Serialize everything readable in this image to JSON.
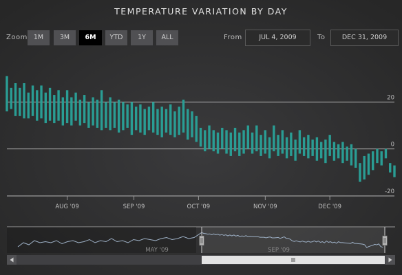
{
  "title": "TEMPERATURE VARIATION BY DAY",
  "zoom": {
    "label": "Zoom",
    "buttons": [
      "1m",
      "3m",
      "6m",
      "YTD",
      "1y",
      "All"
    ],
    "selected": "6m"
  },
  "range": {
    "from_label": "From",
    "from_value": "Jul 4, 2009",
    "to_label": "To",
    "to_value": "Dec 31, 2009"
  },
  "colors": {
    "bar": "#2a9d94",
    "navigator_line": "#9fb2c8",
    "grid": "#b5b5b5"
  },
  "chart_data": {
    "type": "bar",
    "subtype": "column-range",
    "title": "TEMPERATURE VARIATION BY DAY",
    "x_range": [
      "2009-07-04",
      "2009-12-31"
    ],
    "x_tick_labels": [
      "Aug '09",
      "Sep '09",
      "Oct '09",
      "Nov '09",
      "Dec '09"
    ],
    "y_ticks": [
      -20,
      0,
      20
    ],
    "ylim": [
      -20,
      40
    ],
    "grid": true,
    "y_axis_side": "right",
    "series": [
      {
        "data": [
          [
            "2009-07-04",
            16,
            31
          ],
          [
            "2009-07-06",
            17,
            26
          ],
          [
            "2009-07-08",
            14,
            28
          ],
          [
            "2009-07-10",
            14,
            26
          ],
          [
            "2009-07-12",
            13,
            28
          ],
          [
            "2009-07-14",
            13,
            24
          ],
          [
            "2009-07-16",
            14,
            27
          ],
          [
            "2009-07-18",
            12,
            25
          ],
          [
            "2009-07-20",
            13,
            27
          ],
          [
            "2009-07-22",
            11,
            24
          ],
          [
            "2009-07-24",
            12,
            26
          ],
          [
            "2009-07-26",
            11,
            23
          ],
          [
            "2009-07-28",
            12,
            25
          ],
          [
            "2009-07-30",
            10,
            22
          ],
          [
            "2009-08-01",
            11,
            25
          ],
          [
            "2009-08-03",
            10,
            22
          ],
          [
            "2009-08-05",
            12,
            24
          ],
          [
            "2009-08-07",
            10,
            21
          ],
          [
            "2009-08-09",
            11,
            23
          ],
          [
            "2009-08-11",
            9,
            20
          ],
          [
            "2009-08-13",
            10,
            22
          ],
          [
            "2009-08-15",
            9,
            21
          ],
          [
            "2009-08-17",
            8,
            25
          ],
          [
            "2009-08-19",
            9,
            20
          ],
          [
            "2009-08-21",
            8,
            22
          ],
          [
            "2009-08-23",
            9,
            20
          ],
          [
            "2009-08-25",
            7,
            21
          ],
          [
            "2009-08-27",
            8,
            20
          ],
          [
            "2009-08-29",
            9,
            19
          ],
          [
            "2009-08-31",
            6,
            20
          ],
          [
            "2009-09-02",
            8,
            18
          ],
          [
            "2009-09-04",
            7,
            19
          ],
          [
            "2009-09-06",
            6,
            17
          ],
          [
            "2009-09-08",
            8,
            18
          ],
          [
            "2009-09-10",
            7,
            20
          ],
          [
            "2009-09-12",
            6,
            17
          ],
          [
            "2009-09-14",
            5,
            18
          ],
          [
            "2009-09-16",
            7,
            17
          ],
          [
            "2009-09-18",
            6,
            19
          ],
          [
            "2009-09-20",
            5,
            16
          ],
          [
            "2009-09-22",
            6,
            18
          ],
          [
            "2009-09-24",
            7,
            21
          ],
          [
            "2009-09-26",
            4,
            17
          ],
          [
            "2009-09-28",
            5,
            16
          ],
          [
            "2009-09-30",
            3,
            14
          ],
          [
            "2009-10-02",
            1,
            9
          ],
          [
            "2009-10-04",
            -1,
            8
          ],
          [
            "2009-10-06",
            0,
            10
          ],
          [
            "2009-10-08",
            -1,
            8
          ],
          [
            "2009-10-10",
            -2,
            7
          ],
          [
            "2009-10-12",
            0,
            9
          ],
          [
            "2009-10-14",
            -2,
            8
          ],
          [
            "2009-10-16",
            -3,
            7
          ],
          [
            "2009-10-18",
            -1,
            9
          ],
          [
            "2009-10-20",
            -3,
            7
          ],
          [
            "2009-10-22",
            -2,
            8
          ],
          [
            "2009-10-24",
            0,
            10
          ],
          [
            "2009-10-26",
            -2,
            7
          ],
          [
            "2009-10-28",
            -1,
            10
          ],
          [
            "2009-10-30",
            -3,
            6
          ],
          [
            "2009-11-01",
            -2,
            8
          ],
          [
            "2009-11-03",
            -4,
            5
          ],
          [
            "2009-11-05",
            -1,
            10
          ],
          [
            "2009-11-07",
            -3,
            6
          ],
          [
            "2009-11-09",
            -2,
            8
          ],
          [
            "2009-11-11",
            -4,
            5
          ],
          [
            "2009-11-13",
            -3,
            7
          ],
          [
            "2009-11-15",
            -5,
            4
          ],
          [
            "2009-11-17",
            -2,
            8
          ],
          [
            "2009-11-19",
            -3,
            5
          ],
          [
            "2009-11-21",
            -4,
            6
          ],
          [
            "2009-11-23",
            -3,
            4
          ],
          [
            "2009-11-25",
            -5,
            5
          ],
          [
            "2009-11-27",
            -4,
            3
          ],
          [
            "2009-11-29",
            -6,
            4
          ],
          [
            "2009-12-01",
            -3,
            6
          ],
          [
            "2009-12-03",
            -5,
            3
          ],
          [
            "2009-12-05",
            -4,
            2
          ],
          [
            "2009-12-07",
            -6,
            3
          ],
          [
            "2009-12-09",
            -5,
            1
          ],
          [
            "2009-12-11",
            -7,
            2
          ],
          [
            "2009-12-13",
            -8,
            0
          ],
          [
            "2009-12-15",
            -14,
            -6
          ],
          [
            "2009-12-17",
            -13,
            -3
          ],
          [
            "2009-12-19",
            -11,
            -2
          ],
          [
            "2009-12-21",
            -9,
            -1
          ],
          [
            "2009-12-23",
            -6,
            0
          ],
          [
            "2009-12-25",
            -7,
            -1
          ],
          [
            "2009-12-27",
            -4,
            0
          ],
          [
            "2009-12-29",
            -10,
            -6
          ],
          [
            "2009-12-31",
            -12,
            -7
          ]
        ]
      }
    ]
  },
  "navigator": {
    "x_tick_labels": [
      "May '09",
      "Sep '09"
    ],
    "scroll_left_icon": "arrow-left-icon",
    "scroll_right_icon": "arrow-right-icon",
    "scroll_grip_icon": "grip-icon"
  }
}
